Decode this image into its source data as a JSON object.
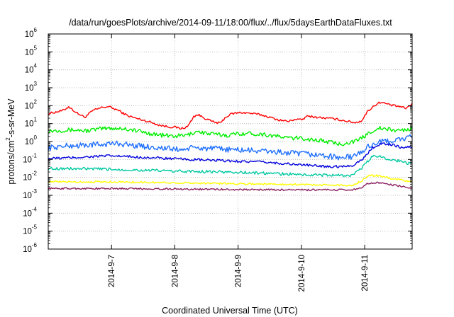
{
  "chart_data": {
    "type": "line",
    "title": "/data/run/goesPlots/archive/2014-09-11/18:00/flux/../flux/5daysEarthDataFluxes.txt",
    "xlabel": "Coordinated Universal Time (UTC)",
    "ylabel": {
      "pre": "protons/cm",
      "sup": "2",
      "post": "-s-sr-MeV"
    },
    "yscale": "log",
    "ylim": [
      1e-06,
      1000000.0
    ],
    "xlim": [
      0,
      5.75
    ],
    "yticks": [
      {
        "exp": "-6",
        "v": -6
      },
      {
        "exp": "-5",
        "v": -5
      },
      {
        "exp": "-4",
        "v": -4
      },
      {
        "exp": "-3",
        "v": -3
      },
      {
        "exp": "-2",
        "v": -2
      },
      {
        "exp": "-1",
        "v": -1
      },
      {
        "exp": "0",
        "v": 0
      },
      {
        "exp": "1",
        "v": 1
      },
      {
        "exp": "2",
        "v": 2
      },
      {
        "exp": "3",
        "v": 3
      },
      {
        "exp": "4",
        "v": 4
      },
      {
        "exp": "5",
        "v": 5
      },
      {
        "exp": "6",
        "v": 6
      }
    ],
    "ytick_base": "10",
    "xticks": [
      {
        "label": "2014-9-7",
        "x": 1
      },
      {
        "label": "2014-9-8",
        "x": 2
      },
      {
        "label": "2014-9-9",
        "x": 3
      },
      {
        "label": "2014-9-10",
        "x": 4
      },
      {
        "label": "2014-9-11",
        "x": 5
      }
    ],
    "grid": true,
    "legend": "none",
    "x_unit": "days after 2014-9-6 00:00 UTC",
    "series": [
      {
        "color": "#ff0000",
        "noise": 0.06,
        "points": [
          [
            0,
            1.55
          ],
          [
            0.25,
            1.75
          ],
          [
            0.32,
            1.95
          ],
          [
            0.45,
            1.6
          ],
          [
            0.58,
            1.35
          ],
          [
            0.7,
            1.72
          ],
          [
            0.85,
            1.9
          ],
          [
            0.95,
            1.95
          ],
          [
            1.1,
            1.75
          ],
          [
            1.25,
            1.45
          ],
          [
            1.4,
            1.28
          ],
          [
            1.6,
            1.1
          ],
          [
            1.75,
            0.92
          ],
          [
            1.9,
            0.82
          ],
          [
            2.0,
            0.8
          ],
          [
            2.1,
            0.72
          ],
          [
            2.2,
            0.82
          ],
          [
            2.3,
            1.4
          ],
          [
            2.36,
            1.5
          ],
          [
            2.45,
            1.35
          ],
          [
            2.52,
            1.22
          ],
          [
            2.62,
            1.08
          ],
          [
            2.72,
            1.02
          ],
          [
            2.8,
            1.35
          ],
          [
            2.9,
            1.55
          ],
          [
            3.05,
            1.62
          ],
          [
            3.2,
            1.57
          ],
          [
            3.35,
            1.5
          ],
          [
            3.5,
            1.35
          ],
          [
            3.65,
            1.2
          ],
          [
            3.8,
            1.12
          ],
          [
            3.9,
            1.25
          ],
          [
            4.0,
            1.2
          ],
          [
            4.1,
            1.42
          ],
          [
            4.25,
            1.35
          ],
          [
            4.4,
            1.3
          ],
          [
            4.55,
            1.25
          ],
          [
            4.7,
            1.15
          ],
          [
            4.85,
            1.05
          ],
          [
            4.95,
            1.15
          ],
          [
            5.05,
            1.7
          ],
          [
            5.15,
            2.0
          ],
          [
            5.25,
            2.2
          ],
          [
            5.35,
            2.1
          ],
          [
            5.45,
            2.0
          ],
          [
            5.55,
            1.95
          ],
          [
            5.65,
            1.85
          ],
          [
            5.75,
            2.1
          ]
        ]
      },
      {
        "color": "#00ee00",
        "noise": 0.12,
        "points": [
          [
            0,
            0.6
          ],
          [
            0.4,
            0.65
          ],
          [
            0.6,
            0.6
          ],
          [
            0.8,
            0.7
          ],
          [
            1.0,
            0.75
          ],
          [
            1.2,
            0.72
          ],
          [
            1.4,
            0.6
          ],
          [
            1.6,
            0.45
          ],
          [
            1.8,
            0.35
          ],
          [
            2.0,
            0.3
          ],
          [
            2.2,
            0.35
          ],
          [
            2.35,
            0.58
          ],
          [
            2.5,
            0.45
          ],
          [
            2.7,
            0.38
          ],
          [
            2.85,
            0.35
          ],
          [
            3.0,
            0.45
          ],
          [
            3.2,
            0.45
          ],
          [
            3.4,
            0.4
          ],
          [
            3.6,
            0.3
          ],
          [
            3.8,
            0.2
          ],
          [
            4.0,
            0.18
          ],
          [
            4.2,
            0.1
          ],
          [
            4.4,
            0.0
          ],
          [
            4.6,
            -0.15
          ],
          [
            4.75,
            -0.05
          ],
          [
            4.9,
            0.05
          ],
          [
            5.0,
            0.3
          ],
          [
            5.1,
            0.55
          ],
          [
            5.2,
            0.75
          ],
          [
            5.35,
            0.68
          ],
          [
            5.5,
            0.62
          ],
          [
            5.65,
            0.65
          ],
          [
            5.75,
            0.72
          ]
        ]
      },
      {
        "color": "#1f6fff",
        "noise": 0.16,
        "points": [
          [
            0,
            -0.35
          ],
          [
            0.3,
            -0.25
          ],
          [
            0.6,
            -0.2
          ],
          [
            0.9,
            -0.15
          ],
          [
            1.1,
            -0.1
          ],
          [
            1.3,
            -0.2
          ],
          [
            1.6,
            -0.3
          ],
          [
            1.9,
            -0.4
          ],
          [
            2.1,
            -0.45
          ],
          [
            2.3,
            -0.35
          ],
          [
            2.6,
            -0.4
          ],
          [
            2.9,
            -0.45
          ],
          [
            3.2,
            -0.5
          ],
          [
            3.5,
            -0.55
          ],
          [
            3.8,
            -0.65
          ],
          [
            4.1,
            -0.7
          ],
          [
            4.4,
            -0.8
          ],
          [
            4.6,
            -0.9
          ],
          [
            4.8,
            -0.85
          ],
          [
            4.95,
            -0.6
          ],
          [
            5.05,
            -0.3
          ],
          [
            5.15,
            -0.1
          ],
          [
            5.3,
            0.0
          ],
          [
            5.45,
            0.05
          ],
          [
            5.6,
            0.15
          ],
          [
            5.75,
            0.25
          ]
        ]
      },
      {
        "color": "#0000dd",
        "noise": 0.07,
        "points": [
          [
            0,
            -0.95
          ],
          [
            0.4,
            -0.9
          ],
          [
            0.8,
            -0.82
          ],
          [
            1.0,
            -0.8
          ],
          [
            1.3,
            -0.85
          ],
          [
            1.6,
            -0.9
          ],
          [
            1.9,
            -0.95
          ],
          [
            2.2,
            -1.0
          ],
          [
            2.6,
            -1.05
          ],
          [
            3.0,
            -1.1
          ],
          [
            3.4,
            -1.15
          ],
          [
            3.8,
            -1.25
          ],
          [
            4.2,
            -1.35
          ],
          [
            4.5,
            -1.4
          ],
          [
            4.8,
            -1.35
          ],
          [
            5.0,
            -0.9
          ],
          [
            5.1,
            -0.4
          ],
          [
            5.2,
            -0.2
          ],
          [
            5.3,
            -0.1
          ],
          [
            5.45,
            -0.2
          ],
          [
            5.6,
            -0.35
          ],
          [
            5.75,
            -0.3
          ]
        ]
      },
      {
        "color": "#00c8a0",
        "noise": 0.08,
        "points": [
          [
            0,
            -1.5
          ],
          [
            0.5,
            -1.52
          ],
          [
            1.0,
            -1.55
          ],
          [
            1.5,
            -1.6
          ],
          [
            2.0,
            -1.65
          ],
          [
            2.5,
            -1.68
          ],
          [
            3.0,
            -1.72
          ],
          [
            3.5,
            -1.78
          ],
          [
            4.0,
            -1.85
          ],
          [
            4.5,
            -1.88
          ],
          [
            4.8,
            -1.9
          ],
          [
            4.95,
            -1.5
          ],
          [
            5.05,
            -1.1
          ],
          [
            5.15,
            -0.75
          ],
          [
            5.25,
            -0.85
          ],
          [
            5.35,
            -0.95
          ],
          [
            5.5,
            -1.05
          ],
          [
            5.6,
            -1.15
          ],
          [
            5.75,
            -1.25
          ]
        ]
      },
      {
        "color": "#ffff00",
        "noise": 0.05,
        "points": [
          [
            0,
            -2.25
          ],
          [
            1.0,
            -2.25
          ],
          [
            2.0,
            -2.3
          ],
          [
            3.0,
            -2.35
          ],
          [
            4.0,
            -2.4
          ],
          [
            4.8,
            -2.45
          ],
          [
            4.95,
            -2.2
          ],
          [
            5.05,
            -1.9
          ],
          [
            5.2,
            -1.9
          ],
          [
            5.4,
            -2.05
          ],
          [
            5.6,
            -2.15
          ],
          [
            5.75,
            -2.25
          ]
        ]
      },
      {
        "color": "#8b2060",
        "noise": 0.05,
        "points": [
          [
            0,
            -2.62
          ],
          [
            1.0,
            -2.62
          ],
          [
            2.0,
            -2.65
          ],
          [
            3.0,
            -2.68
          ],
          [
            4.0,
            -2.7
          ],
          [
            4.8,
            -2.7
          ],
          [
            4.95,
            -2.55
          ],
          [
            5.05,
            -2.35
          ],
          [
            5.2,
            -2.3
          ],
          [
            5.4,
            -2.4
          ],
          [
            5.6,
            -2.5
          ],
          [
            5.75,
            -2.6
          ]
        ]
      }
    ]
  }
}
